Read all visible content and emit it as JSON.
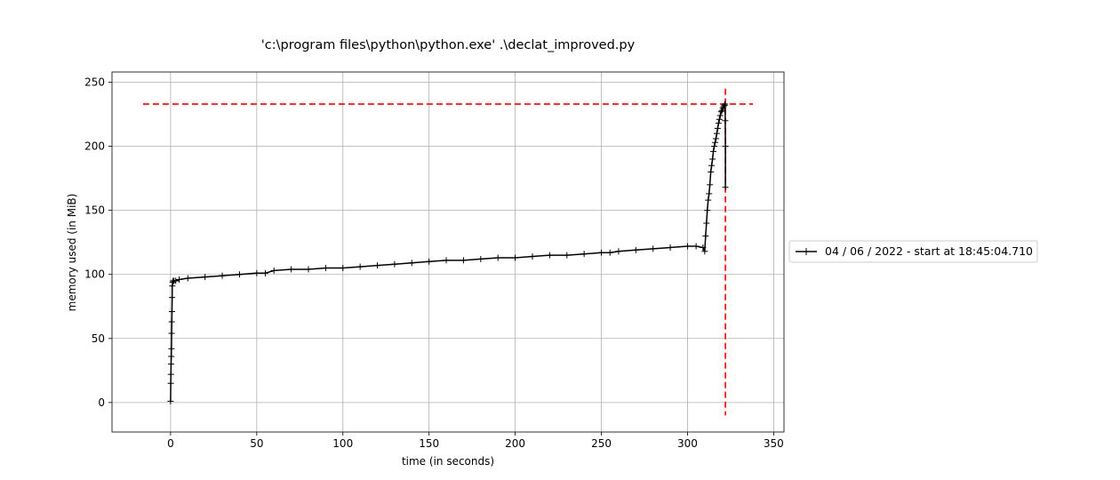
{
  "chart_data": {
    "type": "line",
    "title": "'c:\\program files\\python\\python.exe' .\\declat_improved.py",
    "xlabel": "time (in seconds)",
    "ylabel": "memory used (in MiB)",
    "xlim": [
      -34,
      356
    ],
    "ylim": [
      -23,
      258
    ],
    "xticks": [
      0,
      50,
      100,
      150,
      200,
      250,
      300,
      350
    ],
    "yticks": [
      0,
      50,
      100,
      150,
      200,
      250
    ],
    "grid": true,
    "legend_position": "center-right, outside plot",
    "series": [
      {
        "name": "04 / 06 / 2022 - start at 18:45:04.710",
        "color": "#000000",
        "marker": "+",
        "x": [
          0,
          0.1,
          0.2,
          0.3,
          0.4,
          0.5,
          0.6,
          0.7,
          0.8,
          0.9,
          1.0,
          1.2,
          1.5,
          2,
          3,
          5,
          10,
          20,
          30,
          40,
          50,
          55,
          60,
          70,
          80,
          90,
          100,
          110,
          120,
          130,
          140,
          150,
          160,
          170,
          180,
          190,
          200,
          210,
          220,
          230,
          240,
          250,
          255,
          260,
          270,
          280,
          290,
          300,
          305,
          309,
          310,
          310.5,
          311,
          311.5,
          312,
          312.5,
          313,
          313.5,
          314,
          314.5,
          315,
          315.5,
          316,
          316.5,
          317,
          317.5,
          318,
          318.5,
          319,
          319.5,
          320,
          320.5,
          321,
          321.5,
          321.7,
          321.8,
          321.9,
          322,
          322
        ],
        "y": [
          1,
          15,
          22,
          30,
          36,
          42,
          54,
          63,
          71,
          82,
          91,
          94,
          95,
          95,
          95,
          96,
          97,
          98,
          99,
          100,
          101,
          101,
          103,
          104,
          104,
          105,
          105,
          106,
          107,
          108,
          109,
          110,
          111,
          111,
          112,
          113,
          113,
          114,
          115,
          115,
          116,
          117,
          117,
          118,
          119,
          120,
          121,
          122,
          122,
          121,
          118,
          130,
          140,
          150,
          158,
          163,
          170,
          180,
          185,
          190,
          196,
          200,
          203,
          206,
          210,
          214,
          218,
          221,
          224,
          227,
          228,
          230,
          231,
          232,
          233,
          233,
          220,
          200,
          168
        ]
      }
    ],
    "annotations": [
      {
        "type": "hline",
        "y": 233,
        "x_from": -16,
        "x_to": 338,
        "color": "#ff0000",
        "style": "dashed"
      },
      {
        "type": "vline",
        "x": 322,
        "y_from": -10,
        "y_to": 245,
        "color": "#ff0000",
        "style": "dashed"
      }
    ]
  }
}
